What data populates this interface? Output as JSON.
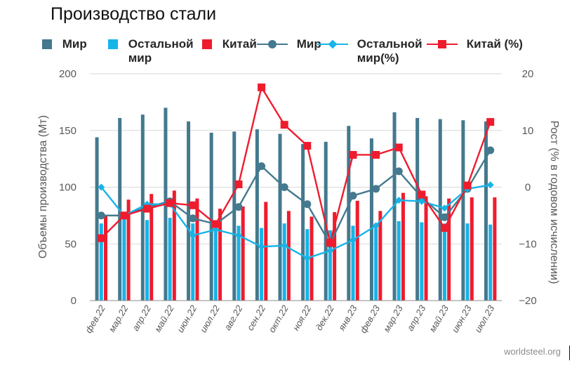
{
  "title": "Производство стали",
  "source": "worldsteel.org",
  "legend": [
    {
      "label": "Мир",
      "kind": "bar",
      "color": "#44798e"
    },
    {
      "label": "Остальной\nмир",
      "kind": "bar",
      "color": "#16b4e8"
    },
    {
      "label": "Китай",
      "kind": "bar",
      "color": "#ee1c2e"
    },
    {
      "label": "Мир",
      "kind": "line",
      "marker": "circle",
      "color": "#44798e"
    },
    {
      "label": "Остальной\nмир(%)",
      "kind": "line",
      "marker": "diamond",
      "color": "#16b4e8"
    },
    {
      "label": "Китай (%)",
      "kind": "line",
      "marker": "square",
      "color": "#ee1c2e"
    }
  ],
  "chart_data": {
    "type": "bar",
    "title": "Производство стали",
    "ylabel": "Объемы производства (Мт)",
    "y2label": "Рост (% в годовом исчислении)",
    "ylim": [
      0,
      200
    ],
    "y2lim": [
      -20,
      20
    ],
    "yticks": [
      "0",
      "50",
      "100",
      "150",
      "200"
    ],
    "y2ticks": [
      "−20",
      "−10",
      "0",
      "10",
      "20"
    ],
    "grid": true,
    "legend_position": "top",
    "categories": [
      "фев.22",
      "мар.22",
      "апр.22",
      "май.22",
      "июн.22",
      "июл.22",
      "авг.22",
      "сен.22",
      "окт.22",
      "ноя.22",
      "дек.22",
      "янв.23",
      "фев.23",
      "мар.23",
      "апр.23",
      "май.23",
      "июн.23",
      "июл.23"
    ],
    "bar_series": [
      {
        "name": "Мир",
        "color": "#44798e",
        "values": [
          144,
          161,
          164,
          170,
          158,
          148,
          149,
          151,
          147,
          138,
          140,
          154,
          143,
          166,
          161,
          160,
          159,
          158
        ]
      },
      {
        "name": "Остальной мир",
        "color": "#16b4e8",
        "values": [
          68,
          73,
          71,
          73,
          68,
          65,
          66,
          64,
          68,
          63,
          62,
          66,
          64,
          70,
          69,
          68,
          68,
          67
        ]
      },
      {
        "name": "Китай",
        "color": "#ee1c2e",
        "values": [
          75,
          89,
          94,
          97,
          90,
          81,
          83,
          87,
          79,
          74,
          78,
          88,
          79,
          95,
          92,
          90,
          91,
          91
        ]
      }
    ],
    "line_series": [
      {
        "name": "Мир",
        "color": "#44798e",
        "marker": "circle",
        "values": [
          -5.0,
          -5.0,
          -3.5,
          -2.5,
          -5.5,
          -6.5,
          -3.5,
          3.7,
          0.0,
          -3.0,
          -10.0,
          -1.5,
          -0.3,
          2.8,
          -1.8,
          -5.3,
          -0.3,
          6.5
        ]
      },
      {
        "name": "Остальной мир(%)",
        "color": "#16b4e8",
        "marker": "diamond",
        "values": [
          0.0,
          -5.0,
          -3.0,
          -3.0,
          -8.5,
          -7.5,
          -8.5,
          -10.5,
          -10.3,
          -12.5,
          -11.2,
          -9.3,
          -6.8,
          -2.3,
          -2.5,
          -3.7,
          -0.3,
          0.4
        ]
      },
      {
        "name": "Китай (%)",
        "color": "#ee1c2e",
        "marker": "square",
        "values": [
          -9.0,
          -5.0,
          -3.8,
          -2.8,
          -3.2,
          -6.5,
          0.5,
          17.6,
          11.0,
          7.3,
          -9.8,
          5.7,
          5.7,
          7.0,
          -1.3,
          -7.2,
          0.3,
          11.5
        ]
      }
    ]
  }
}
